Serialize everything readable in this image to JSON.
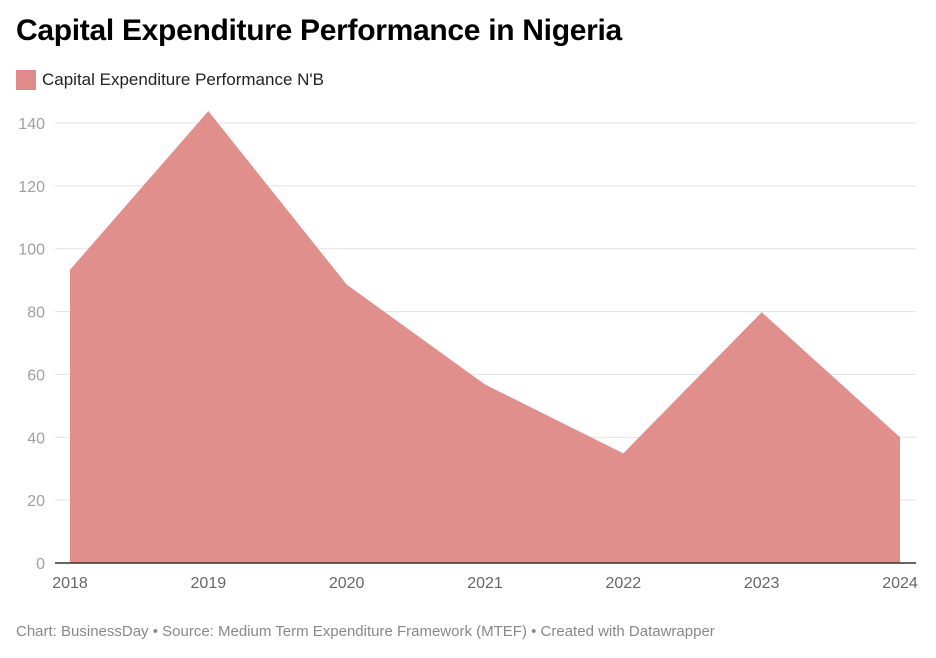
{
  "header": {
    "title": "Capital Expenditure Performance in Nigeria"
  },
  "legend": {
    "items": [
      {
        "label": "Capital Expenditure Performance N'B",
        "color": "#e08b89"
      }
    ]
  },
  "footer": {
    "text": "Chart: BusinessDay • Source: Medium Term Expenditure Framework (MTEF) • Created with Datawrapper"
  },
  "chart_data": {
    "type": "area",
    "title": "Capital Expenditure Performance in Nigeria",
    "xlabel": "",
    "ylabel": "",
    "categories": [
      "2018",
      "2019",
      "2020",
      "2021",
      "2022",
      "2023",
      "2024"
    ],
    "series": [
      {
        "name": "Capital Expenditure Performance N'B",
        "values": [
          93.3,
          143.8,
          88.6,
          56.8,
          34.9,
          79.8,
          40.0
        ],
        "color": "#e08b89"
      }
    ],
    "ylim": [
      0,
      140
    ],
    "yticks": [
      0,
      20,
      40,
      60,
      80,
      100,
      120,
      140
    ],
    "grid": true,
    "legend_position": "top-left"
  }
}
